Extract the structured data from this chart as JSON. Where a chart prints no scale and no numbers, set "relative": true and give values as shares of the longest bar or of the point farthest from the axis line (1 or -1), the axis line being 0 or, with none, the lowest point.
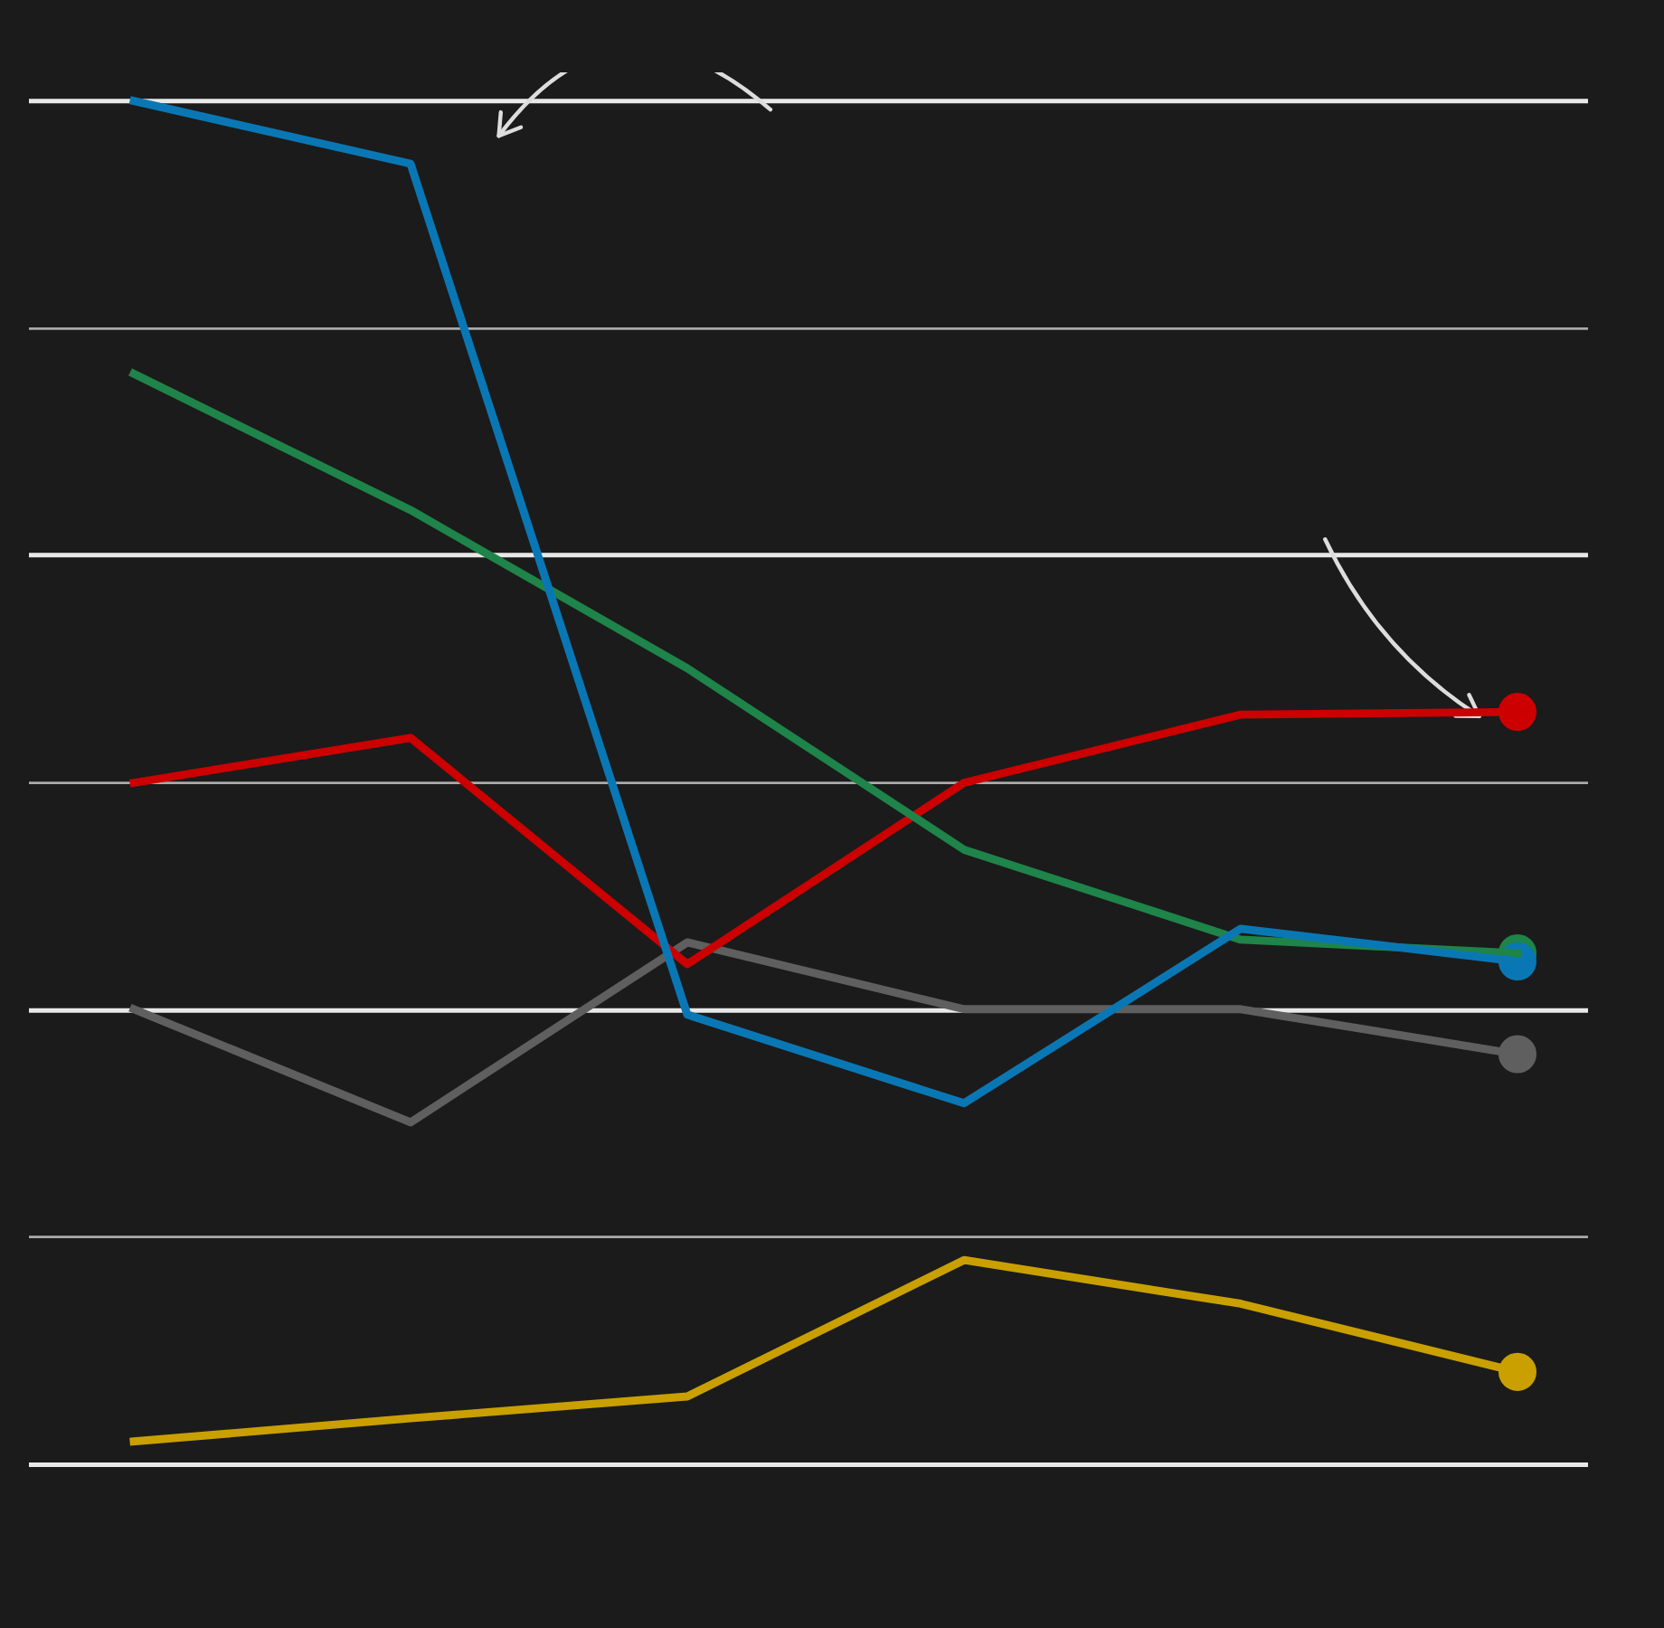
{
  "chart_data": {
    "type": "line",
    "relative": true,
    "ref_lines": [
      {
        "axis": "y",
        "value": 0.167,
        "color": "#aaaaaa"
      },
      {
        "axis": "y",
        "value": 0.333,
        "color": "#e8e8e8"
      },
      {
        "axis": "y",
        "value": 0.5,
        "color": "#aaaaaa"
      },
      {
        "axis": "y",
        "value": 0.667,
        "color": "#e8e8e8"
      },
      {
        "axis": "y",
        "value": 0.833,
        "color": "#aaaaaa"
      },
      {
        "axis": "y",
        "value": 1.0,
        "color": "#e8e8e8"
      }
    ],
    "marker": "none",
    "line_style": "solid",
    "categories": [
      null,
      null,
      null,
      null,
      null,
      null
    ],
    "series": [
      {
        "color": "#0a77b5",
        "values": [
          1.0,
          0.954,
          0.33,
          0.265,
          0.393,
          0.369
        ]
      },
      {
        "color": "#1e8449",
        "values": [
          0.8,
          0.7,
          0.584,
          0.451,
          0.385,
          0.375
        ]
      },
      {
        "color": "#cc0000",
        "values": [
          0.5,
          0.533,
          0.367,
          0.5,
          0.55,
          0.552
        ]
      },
      {
        "color": "#5f5f5f",
        "values": [
          0.334,
          0.251,
          0.383,
          0.334,
          0.334,
          0.301
        ]
      },
      {
        "color": "#c9a000",
        "values": [
          0.017,
          0.034,
          0.05,
          0.15,
          0.118,
          0.068
        ]
      }
    ]
  }
}
